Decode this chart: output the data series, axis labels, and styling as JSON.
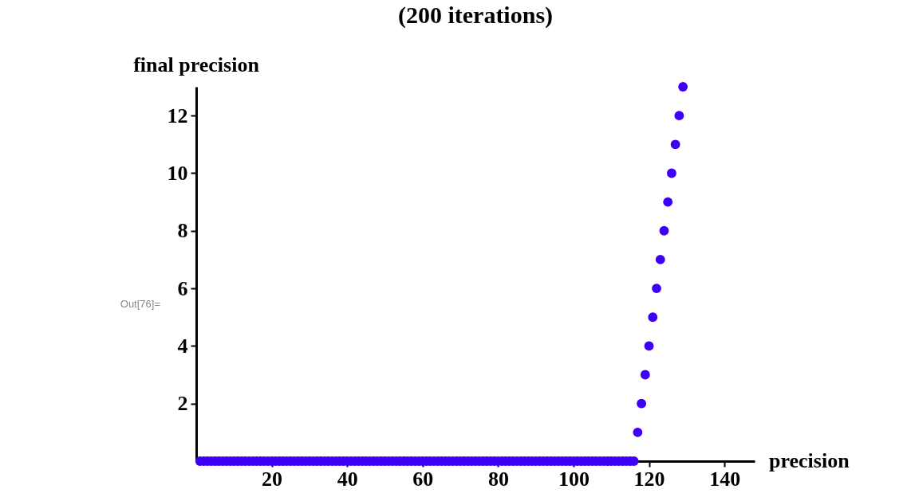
{
  "chart_data": {
    "type": "scatter",
    "title": "(200 iterations)",
    "xlabel": "precision",
    "ylabel": "final precision",
    "annotations": [
      "Out[76]="
    ],
    "x": [
      1,
      2,
      3,
      4,
      5,
      6,
      7,
      8,
      9,
      10,
      11,
      12,
      13,
      14,
      15,
      16,
      17,
      18,
      19,
      20,
      21,
      22,
      23,
      24,
      25,
      26,
      27,
      28,
      29,
      30,
      31,
      32,
      33,
      34,
      35,
      36,
      37,
      38,
      39,
      40,
      41,
      42,
      43,
      44,
      45,
      46,
      47,
      48,
      49,
      50,
      51,
      52,
      53,
      54,
      55,
      56,
      57,
      58,
      59,
      60,
      61,
      62,
      63,
      64,
      65,
      66,
      67,
      68,
      69,
      70,
      71,
      72,
      73,
      74,
      75,
      76,
      77,
      78,
      79,
      80,
      81,
      82,
      83,
      84,
      85,
      86,
      87,
      88,
      89,
      90,
      91,
      92,
      93,
      94,
      95,
      96,
      97,
      98,
      99,
      100,
      101,
      102,
      103,
      104,
      105,
      106,
      107,
      108,
      109,
      110,
      111,
      112,
      113,
      114,
      115,
      116,
      117,
      118,
      119,
      120,
      121,
      122,
      123,
      124,
      125,
      126,
      127,
      128,
      129
    ],
    "series": [
      {
        "color": "#3d00f5",
        "values": [
          0,
          0,
          0,
          0,
          0,
          0,
          0,
          0,
          0,
          0,
          0,
          0,
          0,
          0,
          0,
          0,
          0,
          0,
          0,
          0,
          0,
          0,
          0,
          0,
          0,
          0,
          0,
          0,
          0,
          0,
          0,
          0,
          0,
          0,
          0,
          0,
          0,
          0,
          0,
          0,
          0,
          0,
          0,
          0,
          0,
          0,
          0,
          0,
          0,
          0,
          0,
          0,
          0,
          0,
          0,
          0,
          0,
          0,
          0,
          0,
          0,
          0,
          0,
          0,
          0,
          0,
          0,
          0,
          0,
          0,
          0,
          0,
          0,
          0,
          0,
          0,
          0,
          0,
          0,
          0,
          0,
          0,
          0,
          0,
          0,
          0,
          0,
          0,
          0,
          0,
          0,
          0,
          0,
          0,
          0,
          0,
          0,
          0,
          0,
          0,
          0,
          0,
          0,
          0,
          0,
          0,
          0,
          0,
          0,
          0,
          0,
          0,
          0,
          0,
          0,
          0,
          1,
          2,
          3,
          4,
          5,
          6,
          7,
          8,
          9,
          10,
          11,
          12,
          13
        ]
      }
    ],
    "marker": "circle",
    "xlim": [
      0,
      148
    ],
    "ylim": [
      0,
      13
    ],
    "xticks": [
      20,
      40,
      60,
      80,
      100,
      120,
      140
    ],
    "yticks": [
      2,
      4,
      6,
      8,
      10,
      12
    ],
    "grid": false,
    "legend": false
  }
}
